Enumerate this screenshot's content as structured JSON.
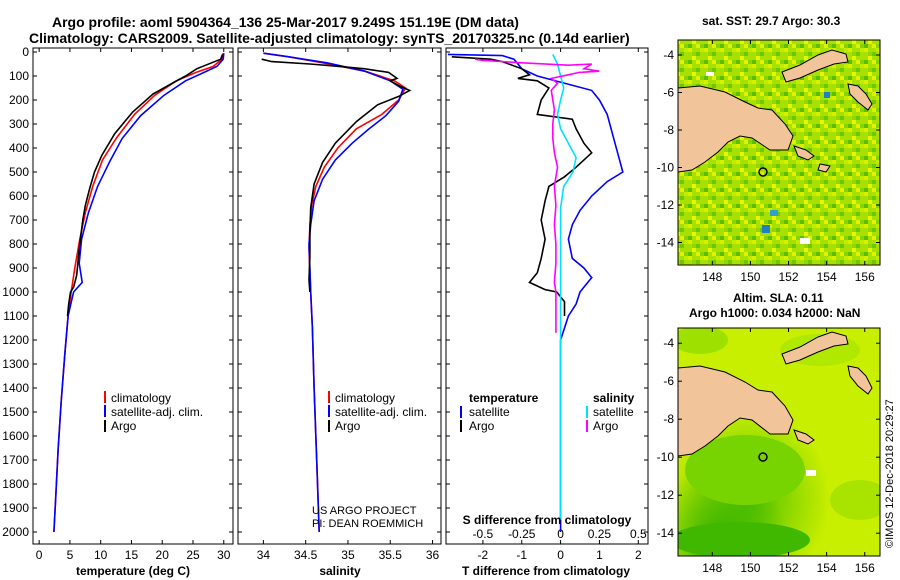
{
  "header": {
    "title_line1": "Argo profile: aoml 5904364_136 25-Mar-2017 9.249S 151.19E (DM data)",
    "title_line2": "Climatology: CARS2009. Satellite-adjusted climatology: synTS_20170325.nc (0.14d earlier)"
  },
  "colors": {
    "climatology": "#ff0000",
    "satellite": "#0000ff",
    "argo": "#000000",
    "sat_salinity": "#00e0ff",
    "argo_salinity": "#ff00ff",
    "land": "#f2c49a"
  },
  "depth_axis": {
    "ticks": [
      "0",
      "100",
      "200",
      "300",
      "400",
      "500",
      "600",
      "700",
      "800",
      "900",
      "1000",
      "1100",
      "1200",
      "1300",
      "1400",
      "1500",
      "1600",
      "1700",
      "1800",
      "1900",
      "2000"
    ],
    "range": [
      0,
      2050
    ]
  },
  "chart_data": [
    {
      "type": "line",
      "panel": "temperature",
      "xlabel": "temperature (deg C)",
      "xlim": [
        -1,
        31.5
      ],
      "xticks": [
        "0",
        "5",
        "10",
        "15",
        "20",
        "25",
        "30"
      ],
      "legend": [
        "climatology",
        "satellite-adj. clim.",
        "Argo"
      ],
      "series": [
        {
          "name": "climatology",
          "points": [
            [
              29.9,
              5
            ],
            [
              29.7,
              30
            ],
            [
              28.3,
              60
            ],
            [
              25.5,
              85
            ],
            [
              22.3,
              120
            ],
            [
              18.8,
              180
            ],
            [
              15.5,
              260
            ],
            [
              12.5,
              360
            ],
            [
              10.3,
              450
            ],
            [
              8.7,
              560
            ],
            [
              7.5,
              670
            ],
            [
              6.6,
              780
            ],
            [
              5.8,
              900
            ],
            [
              5.2,
              1000
            ],
            [
              4.7,
              1100
            ],
            [
              4.2,
              1250
            ],
            [
              3.6,
              1450
            ],
            [
              3.1,
              1650
            ],
            [
              2.7,
              1850
            ],
            [
              2.4,
              2000
            ]
          ]
        },
        {
          "name": "satellite-adj. clim.",
          "points": [
            [
              30.0,
              5
            ],
            [
              29.9,
              30
            ],
            [
              28.9,
              60
            ],
            [
              26.8,
              85
            ],
            [
              23.8,
              120
            ],
            [
              20.3,
              180
            ],
            [
              16.5,
              265
            ],
            [
              13.5,
              360
            ],
            [
              11.5,
              455
            ],
            [
              9.5,
              560
            ],
            [
              8.0,
              670
            ],
            [
              6.9,
              780
            ],
            [
              6.5,
              880
            ],
            [
              7.0,
              960
            ],
            [
              5.6,
              1000
            ],
            [
              4.7,
              1100
            ],
            [
              4.2,
              1250
            ],
            [
              3.6,
              1450
            ],
            [
              3.1,
              1650
            ],
            [
              2.7,
              1850
            ],
            [
              2.4,
              2000
            ]
          ]
        },
        {
          "name": "Argo",
          "points": [
            [
              29.8,
              10
            ],
            [
              29.5,
              30
            ],
            [
              25.6,
              70
            ],
            [
              23.8,
              100
            ],
            [
              22.0,
              125
            ],
            [
              18.5,
              175
            ],
            [
              15.2,
              250
            ],
            [
              12.3,
              340
            ],
            [
              10.2,
              430
            ],
            [
              9.0,
              500
            ],
            [
              8.2,
              570
            ],
            [
              7.5,
              640
            ],
            [
              7.1,
              700
            ],
            [
              6.7,
              780
            ],
            [
              6.4,
              850
            ],
            [
              6.1,
              930
            ],
            [
              5.6,
              980
            ],
            [
              5.1,
              1000
            ],
            [
              4.8,
              1050
            ],
            [
              4.6,
              1100
            ]
          ]
        }
      ]
    },
    {
      "type": "line",
      "panel": "salinity",
      "xlabel": "salinity",
      "xlim": [
        33.7,
        36.1
      ],
      "xticks": [
        "34",
        "34.5",
        "35",
        "35.5",
        "36"
      ],
      "legend": [
        "climatology",
        "satellite-adj. clim.",
        "Argo"
      ],
      "series": [
        {
          "name": "climatology",
          "points": [
            [
              34.0,
              5
            ],
            [
              34.3,
              20
            ],
            [
              34.7,
              45
            ],
            [
              35.2,
              80
            ],
            [
              35.55,
              120
            ],
            [
              35.68,
              150
            ],
            [
              35.6,
              200
            ],
            [
              35.4,
              260
            ],
            [
              35.1,
              320
            ],
            [
              34.88,
              400
            ],
            [
              34.72,
              480
            ],
            [
              34.62,
              560
            ],
            [
              34.57,
              640
            ],
            [
              34.55,
              720
            ],
            [
              34.54,
              820
            ],
            [
              34.55,
              920
            ],
            [
              34.56,
              1000
            ],
            [
              34.58,
              1150
            ],
            [
              34.6,
              1400
            ],
            [
              34.63,
              1700
            ],
            [
              34.66,
              2000
            ]
          ]
        },
        {
          "name": "satellite-adj. clim.",
          "points": [
            [
              34.0,
              5
            ],
            [
              34.3,
              20
            ],
            [
              34.75,
              45
            ],
            [
              35.2,
              80
            ],
            [
              35.5,
              120
            ],
            [
              35.65,
              155
            ],
            [
              35.6,
              205
            ],
            [
              35.45,
              265
            ],
            [
              35.25,
              320
            ],
            [
              35.05,
              380
            ],
            [
              34.85,
              450
            ],
            [
              34.7,
              530
            ],
            [
              34.6,
              620
            ],
            [
              34.56,
              720
            ],
            [
              34.54,
              800
            ],
            [
              34.55,
              900
            ],
            [
              34.56,
              1000
            ],
            [
              34.58,
              1150
            ],
            [
              34.6,
              1400
            ],
            [
              34.63,
              1700
            ],
            [
              34.66,
              2000
            ]
          ]
        },
        {
          "name": "Argo",
          "points": [
            [
              33.98,
              30
            ],
            [
              34.1,
              40
            ],
            [
              34.55,
              50
            ],
            [
              34.9,
              60
            ],
            [
              35.2,
              70
            ],
            [
              35.48,
              85
            ],
            [
              35.58,
              110
            ],
            [
              35.5,
              120
            ],
            [
              35.6,
              140
            ],
            [
              35.73,
              160
            ],
            [
              35.6,
              185
            ],
            [
              35.35,
              220
            ],
            [
              35.1,
              290
            ],
            [
              34.85,
              380
            ],
            [
              34.7,
              460
            ],
            [
              34.6,
              550
            ],
            [
              34.56,
              650
            ],
            [
              34.55,
              750
            ],
            [
              34.55,
              850
            ],
            [
              34.54,
              950
            ],
            [
              34.55,
              1000
            ]
          ]
        }
      ]
    },
    {
      "type": "line",
      "panel": "difference",
      "xlabel": "T difference from climatology",
      "xlabel_top": "S difference from climatology",
      "xlim": [
        -2.95,
        2.25
      ],
      "xticks": [
        "-2",
        "-1",
        "0",
        "1",
        "2"
      ],
      "xticks_s": [
        "-0.5",
        "-0.25",
        "0",
        "0.25",
        "0.5"
      ],
      "legend_temperature_header": "temperature",
      "legend_salinity_header": "salinity",
      "legend_temperature": [
        "satellite",
        "Argo"
      ],
      "legend_salinity": [
        "satellite",
        "Argo"
      ],
      "series": [
        {
          "name": "temperature satellite",
          "points": [
            [
              -2.9,
              10
            ],
            [
              -1.5,
              15
            ],
            [
              -1.2,
              30
            ],
            [
              -1.0,
              70
            ],
            [
              -0.6,
              100
            ],
            [
              0.8,
              160
            ],
            [
              1.0,
              200
            ],
            [
              1.2,
              260
            ],
            [
              1.3,
              320
            ],
            [
              1.4,
              380
            ],
            [
              1.5,
              440
            ],
            [
              1.6,
              500
            ],
            [
              1.2,
              540
            ],
            [
              0.8,
              600
            ],
            [
              0.5,
              660
            ],
            [
              0.3,
              720
            ],
            [
              0.2,
              780
            ],
            [
              0.3,
              860
            ],
            [
              0.6,
              900
            ],
            [
              0.8,
              940
            ],
            [
              0.7,
              960
            ],
            [
              0.5,
              1000
            ],
            [
              0.4,
              1050
            ],
            [
              0.2,
              1100
            ],
            [
              0,
              1200
            ],
            [
              0,
              1500
            ],
            [
              0,
              2000
            ]
          ]
        },
        {
          "name": "temperature Argo",
          "points": [
            [
              -2.8,
              20
            ],
            [
              -1.8,
              30
            ],
            [
              -1.5,
              40
            ],
            [
              -1.0,
              70
            ],
            [
              -0.8,
              95
            ],
            [
              -1.1,
              110
            ],
            [
              -0.6,
              120
            ],
            [
              -0.3,
              150
            ],
            [
              -0.5,
              200
            ],
            [
              -0.6,
              260
            ],
            [
              0.3,
              280
            ],
            [
              0.4,
              320
            ],
            [
              0.6,
              380
            ],
            [
              0.8,
              420
            ],
            [
              0.4,
              480
            ],
            [
              0.1,
              520
            ],
            [
              -0.3,
              560
            ],
            [
              -0.4,
              620
            ],
            [
              -0.5,
              700
            ],
            [
              -0.4,
              780
            ],
            [
              -0.5,
              860
            ],
            [
              -0.6,
              920
            ],
            [
              -0.8,
              960
            ],
            [
              -0.4,
              990
            ],
            [
              -0.1,
              1000
            ],
            [
              0.1,
              1040
            ],
            [
              0.1,
              1100
            ]
          ]
        },
        {
          "name": "salinity satellite",
          "points": [
            [
              -0.05,
              10
            ],
            [
              -0.02,
              50
            ],
            [
              0.0,
              100
            ],
            [
              0.02,
              150
            ],
            [
              0.0,
              200
            ],
            [
              -0.02,
              260
            ],
            [
              0.0,
              320
            ],
            [
              0.05,
              380
            ],
            [
              0.1,
              440
            ],
            [
              0.08,
              500
            ],
            [
              0.02,
              560
            ],
            [
              0.0,
              650
            ],
            [
              0.0,
              800
            ],
            [
              0.0,
              1000
            ],
            [
              0.0,
              1200
            ],
            [
              0.0,
              1500
            ],
            [
              0.0,
              1800
            ],
            [
              0.0,
              1950
            ]
          ]
        },
        {
          "name": "salinity Argo",
          "points": [
            [
              -0.55,
              30
            ],
            [
              -0.5,
              35
            ],
            [
              -0.25,
              45
            ],
            [
              0.05,
              55
            ],
            [
              0.2,
              50
            ],
            [
              0.15,
              70
            ],
            [
              0.25,
              80
            ],
            [
              0.12,
              85
            ],
            [
              0.05,
              95
            ],
            [
              -0.06,
              110
            ],
            [
              -0.02,
              130
            ],
            [
              -0.06,
              160
            ],
            [
              -0.05,
              200
            ],
            [
              -0.04,
              240
            ],
            [
              -0.05,
              300
            ],
            [
              -0.05,
              360
            ],
            [
              -0.04,
              420
            ],
            [
              -0.02,
              480
            ],
            [
              -0.04,
              560
            ],
            [
              -0.03,
              640
            ],
            [
              -0.04,
              720
            ],
            [
              -0.03,
              800
            ],
            [
              -0.03,
              880
            ],
            [
              -0.04,
              960
            ],
            [
              -0.03,
              1000
            ],
            [
              -0.03,
              1100
            ],
            [
              -0.03,
              1170
            ]
          ]
        }
      ]
    }
  ],
  "credits": {
    "line1": "US ARGO PROJECT",
    "line2": "PI: DEAN ROEMMICH",
    "imos": "©IMOS 12-Dec-2018 20:29:27"
  },
  "map_top": {
    "title": "sat. SST: 29.7 Argo: 30.3",
    "lat_ticks": [
      "-4",
      "-6",
      "-8",
      "-10",
      "-12",
      "-14"
    ],
    "lon_ticks": [
      "148",
      "150",
      "152",
      "154",
      "156"
    ]
  },
  "map_bottom": {
    "title_line1": "Altim. SLA: 0.11",
    "title_line2": "Argo h1000: 0.034 h2000: NaN",
    "lat_ticks": [
      "-4",
      "-6",
      "-8",
      "-10",
      "-12",
      "-14"
    ],
    "lon_ticks": [
      "148",
      "150",
      "152",
      "154",
      "156"
    ]
  }
}
